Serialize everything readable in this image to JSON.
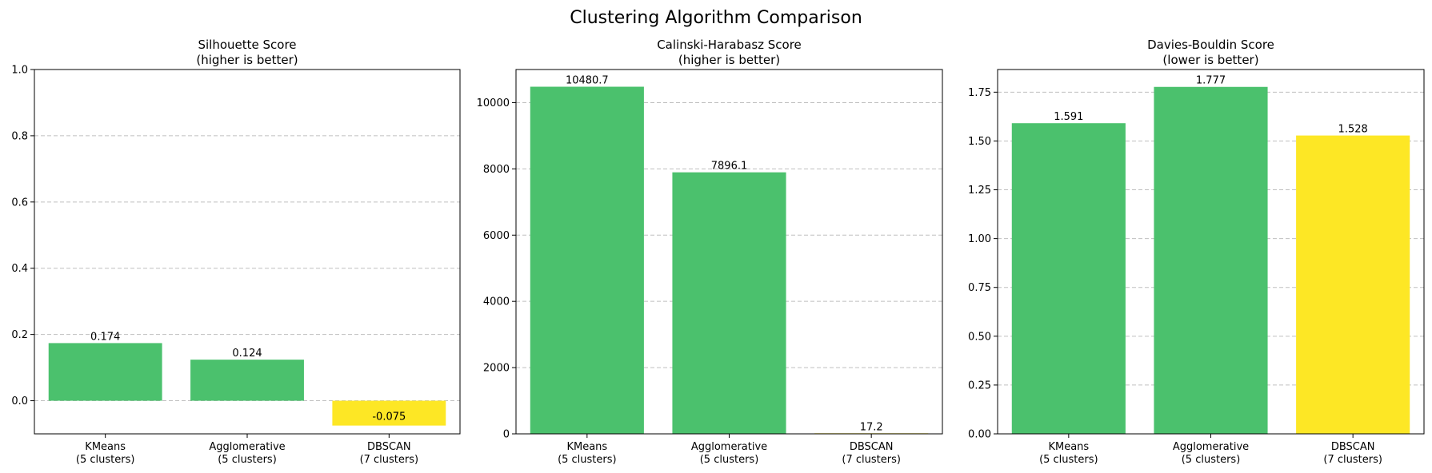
{
  "figure": {
    "suptitle": "Clustering Algorithm Comparison"
  },
  "colors": {
    "good": "#4bc16d",
    "bad": "#fde725",
    "grid": "#b0b0b0",
    "axis": "#000000"
  },
  "chart_data": [
    {
      "type": "bar",
      "title_line1": "Silhouette Score",
      "title_line2": "(higher is better)",
      "categories": [
        [
          "KMeans",
          "(5 clusters)"
        ],
        [
          "Agglomerative",
          "(5 clusters)"
        ],
        [
          "DBSCAN",
          "(7 clusters)"
        ]
      ],
      "values": [
        0.174,
        0.124,
        -0.075
      ],
      "value_labels": [
        "0.174",
        "0.124",
        "-0.075"
      ],
      "bar_colors": [
        "good",
        "good",
        "bad"
      ],
      "ylim": [
        -0.1,
        1.0
      ],
      "yticks": [
        0.0,
        0.2,
        0.4,
        0.6,
        0.8,
        1.0
      ],
      "ytick_labels": [
        "0.0",
        "0.2",
        "0.4",
        "0.6",
        "0.8",
        "1.0"
      ],
      "grid": "y-dashed",
      "xlabel": "",
      "ylabel": ""
    },
    {
      "type": "bar",
      "title_line1": "Calinski-Harabasz Score",
      "title_line2": "(higher is better)",
      "categories": [
        [
          "KMeans",
          "(5 clusters)"
        ],
        [
          "Agglomerative",
          "(5 clusters)"
        ],
        [
          "DBSCAN",
          "(7 clusters)"
        ]
      ],
      "values": [
        10480.7,
        7896.1,
        17.2
      ],
      "value_labels": [
        "10480.7",
        "7896.1",
        "17.2"
      ],
      "bar_colors": [
        "good",
        "good",
        "bad"
      ],
      "ylim": [
        0,
        11000
      ],
      "yticks": [
        0,
        2000,
        4000,
        6000,
        8000,
        10000
      ],
      "ytick_labels": [
        "0",
        "2000",
        "4000",
        "6000",
        "8000",
        "10000"
      ],
      "grid": "y-dashed",
      "xlabel": "",
      "ylabel": ""
    },
    {
      "type": "bar",
      "title_line1": "Davies-Bouldin Score",
      "title_line2": "(lower is better)",
      "categories": [
        [
          "KMeans",
          "(5 clusters)"
        ],
        [
          "Agglomerative",
          "(5 clusters)"
        ],
        [
          "DBSCAN",
          "(7 clusters)"
        ]
      ],
      "values": [
        1.591,
        1.777,
        1.528
      ],
      "value_labels": [
        "1.591",
        "1.777",
        "1.528"
      ],
      "bar_colors": [
        "good",
        "good",
        "bad"
      ],
      "ylim": [
        0,
        1.866
      ],
      "yticks": [
        0.0,
        0.25,
        0.5,
        0.75,
        1.0,
        1.25,
        1.5,
        1.75
      ],
      "ytick_labels": [
        "0.00",
        "0.25",
        "0.50",
        "0.75",
        "1.00",
        "1.25",
        "1.50",
        "1.75"
      ],
      "grid": "y-dashed",
      "xlabel": "",
      "ylabel": ""
    }
  ]
}
